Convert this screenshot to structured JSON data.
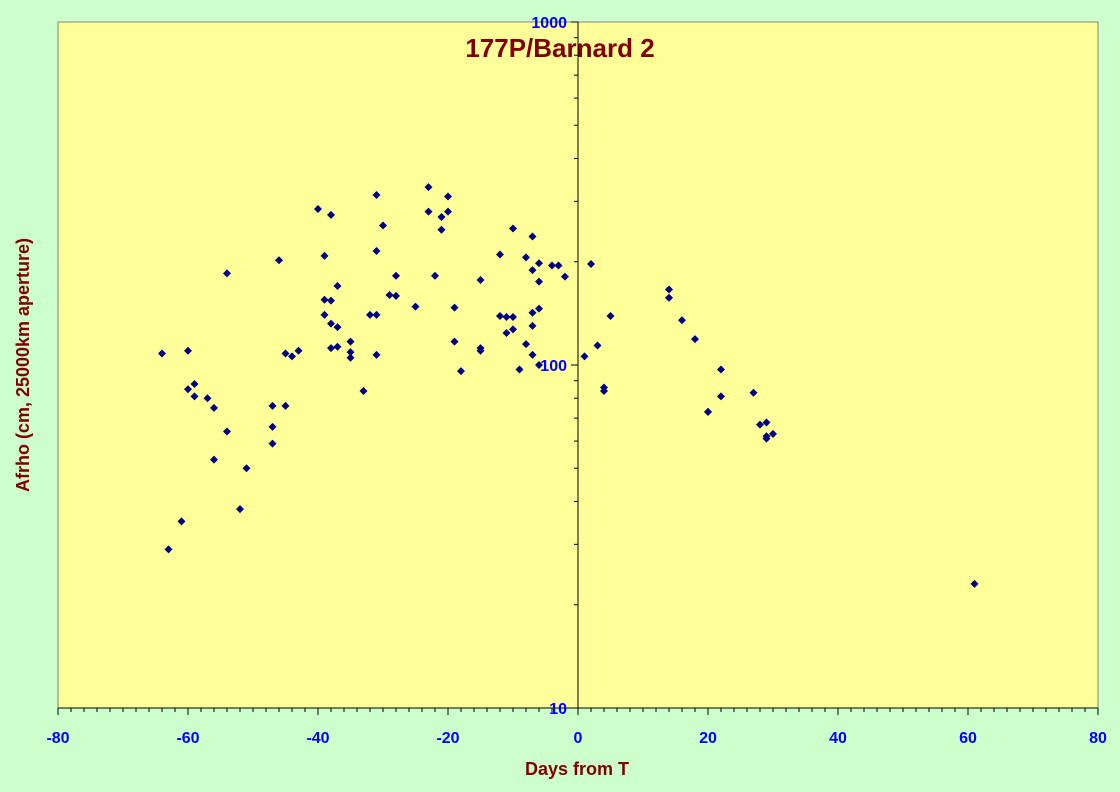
{
  "colors": {
    "page_background": "#ccffcc",
    "plot_background": "#ffff99",
    "marker": "#000080",
    "title": "#800000",
    "tick_labels": "#0000ff",
    "axis_line": "#000000"
  },
  "chart_data": {
    "type": "scatter",
    "title": "177P/Barnard 2",
    "xlabel": "Days from T",
    "ylabel": "Afrho (cm, 25000km aperture)",
    "xlim": [
      -80,
      80
    ],
    "ylim": [
      10,
      1000
    ],
    "y_scale": "log",
    "x_ticks": [
      -80,
      -60,
      -40,
      -20,
      0,
      20,
      40,
      60,
      80
    ],
    "y_ticks": [
      10,
      100,
      1000
    ],
    "x_tick_labels": [
      "-80",
      "-60",
      "-40",
      "-20",
      "0",
      "20",
      "40",
      "60",
      "80"
    ],
    "y_tick_labels": [
      "10",
      "100",
      "1000"
    ],
    "grid": false,
    "legend": "none",
    "marker": "diamond",
    "series": [
      {
        "points": [
          [
            -64,
            108
          ],
          [
            -63,
            29
          ],
          [
            -61,
            35
          ],
          [
            -60,
            110
          ],
          [
            -60,
            85
          ],
          [
            -59,
            88
          ],
          [
            -59,
            81
          ],
          [
            -57,
            80
          ],
          [
            -56,
            75
          ],
          [
            -56,
            53
          ],
          [
            -54,
            185
          ],
          [
            -54,
            64
          ],
          [
            -52,
            38
          ],
          [
            -51,
            50
          ],
          [
            -47,
            76
          ],
          [
            -47,
            66
          ],
          [
            -47,
            59
          ],
          [
            -46,
            202
          ],
          [
            -45,
            108
          ],
          [
            -45,
            76
          ],
          [
            -44,
            106
          ],
          [
            -43,
            110
          ],
          [
            -40,
            285
          ],
          [
            -39,
            208
          ],
          [
            -39,
            140
          ],
          [
            -39,
            155
          ],
          [
            -38,
            154
          ],
          [
            -38,
            274
          ],
          [
            -38,
            132
          ],
          [
            -38,
            112
          ],
          [
            -37,
            170
          ],
          [
            -37,
            129
          ],
          [
            -37,
            113
          ],
          [
            -35,
            117
          ],
          [
            -35,
            109
          ],
          [
            -35,
            105
          ],
          [
            -33,
            84
          ],
          [
            -32,
            140
          ],
          [
            -31,
            313
          ],
          [
            -31,
            215
          ],
          [
            -31,
            140
          ],
          [
            -31,
            107
          ],
          [
            -30,
            255
          ],
          [
            -29,
            160
          ],
          [
            -28,
            159
          ],
          [
            -28,
            182
          ],
          [
            -25,
            148
          ],
          [
            -23,
            330
          ],
          [
            -23,
            280
          ],
          [
            -22,
            182
          ],
          [
            -21,
            270
          ],
          [
            -21,
            248
          ],
          [
            -20,
            310
          ],
          [
            -20,
            280
          ],
          [
            -19,
            147
          ],
          [
            -19,
            117
          ],
          [
            -18,
            96
          ],
          [
            -15,
            177
          ],
          [
            -15,
            112
          ],
          [
            -15,
            110
          ],
          [
            -12,
            210
          ],
          [
            -12,
            139
          ],
          [
            -11,
            138
          ],
          [
            -11,
            124
          ],
          [
            -10,
            138
          ],
          [
            -10,
            127
          ],
          [
            -10,
            250
          ],
          [
            -9,
            97
          ],
          [
            -8,
            206
          ],
          [
            -8,
            115
          ],
          [
            -7,
            237
          ],
          [
            -7,
            189
          ],
          [
            -7,
            142
          ],
          [
            -7,
            130
          ],
          [
            -7,
            107
          ],
          [
            -6,
            198
          ],
          [
            -6,
            175
          ],
          [
            -6,
            146
          ],
          [
            -6,
            100
          ],
          [
            -4,
            195
          ],
          [
            -3,
            195
          ],
          [
            -2,
            181
          ],
          [
            1,
            106
          ],
          [
            2,
            197
          ],
          [
            3,
            114
          ],
          [
            4,
            86
          ],
          [
            4,
            84
          ],
          [
            5,
            139
          ],
          [
            14,
            166
          ],
          [
            14,
            157
          ],
          [
            16,
            135
          ],
          [
            18,
            119
          ],
          [
            20,
            73
          ],
          [
            20,
            73
          ],
          [
            22,
            97
          ],
          [
            22,
            81
          ],
          [
            27,
            83
          ],
          [
            28,
            67
          ],
          [
            29,
            68
          ],
          [
            29,
            62
          ],
          [
            29,
            61
          ],
          [
            30,
            63
          ],
          [
            61,
            23
          ]
        ]
      }
    ]
  }
}
